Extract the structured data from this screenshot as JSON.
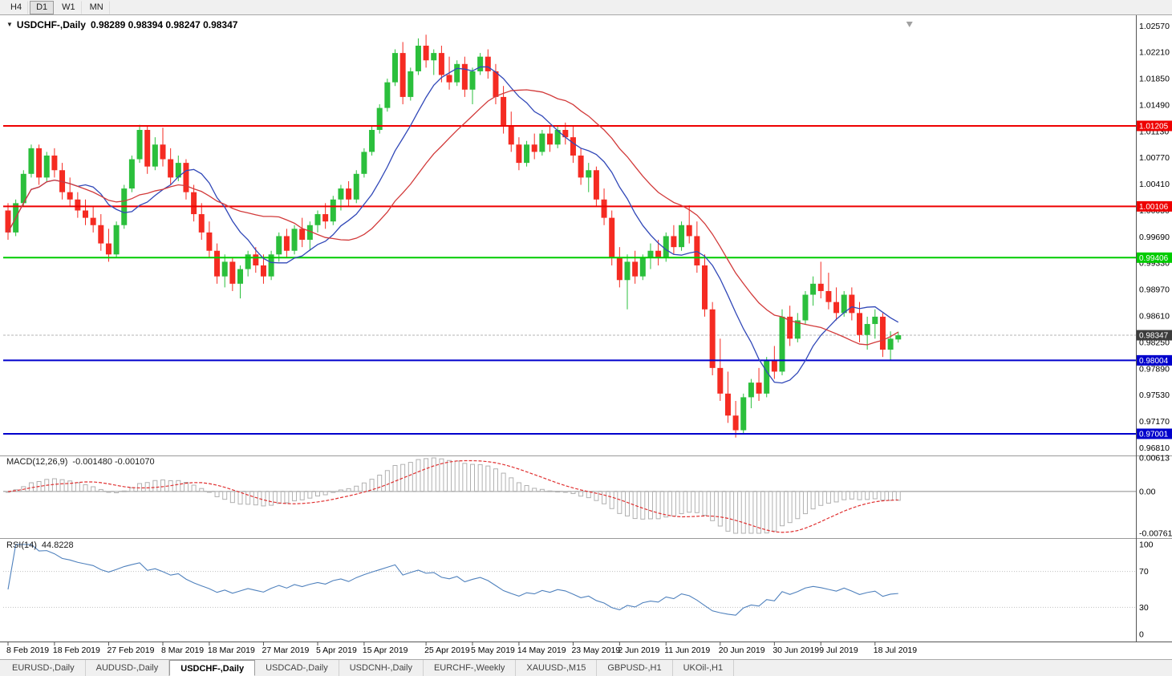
{
  "toolbar": {
    "timeframes": [
      "H4",
      "D1",
      "W1",
      "MN"
    ],
    "active_timeframe": "D1"
  },
  "chart_title": {
    "expander": "▼",
    "symbol": "USDCHF-,Daily",
    "ohlc_text": "0.98289 0.98394 0.98247 0.98347"
  },
  "tabs": [
    "EURUSD-,Daily",
    "AUDUSD-,Daily",
    "USDCHF-,Daily",
    "USDCAD-,Daily",
    "USDCNH-,Daily",
    "EURCHF-,Weekly",
    "XAUUSD-,M15",
    "GBPUSD-,H1",
    "UKOil-,H1"
  ],
  "active_tab": "USDCHF-,Daily",
  "chart_data": {
    "type": "candlestick",
    "symbol": "USDCHF",
    "timeframe": "Daily",
    "ohlc_current": {
      "open": 0.98289,
      "high": 0.98394,
      "low": 0.98247,
      "close": 0.98347
    },
    "price_axis": {
      "labels": [
        "1.02570",
        "1.02210",
        "1.01850",
        "1.01490",
        "1.01130",
        "1.00770",
        "1.00410",
        "1.00050",
        "0.99690",
        "0.99330",
        "0.98970",
        "0.98610",
        "0.98250",
        "0.97890",
        "0.97530",
        "0.97170",
        "0.96810"
      ]
    },
    "x_axis": {
      "tick_indices": [
        0,
        6,
        13,
        20,
        26,
        33,
        40,
        46,
        54,
        60,
        66,
        73,
        79,
        85,
        92,
        99,
        105,
        112
      ],
      "tick_labels": [
        "8 Feb 2019",
        "18 Feb 2019",
        "27 Feb 2019",
        "8 Mar 2019",
        "18 Mar 2019",
        "27 Mar 2019",
        "5 Apr 2019",
        "15 Apr 2019",
        "25 Apr 2019",
        "5 May 2019",
        "14 May 2019",
        "23 May 2019",
        "2 Jun 2019",
        "11 Jun 2019",
        "20 Jun 2019",
        "30 Jun 2019",
        "9 Jul 2019",
        "18 Jul 2019"
      ]
    },
    "levels": [
      {
        "value": 1.01205,
        "label": "1.01205",
        "color": "#ee0000"
      },
      {
        "value": 1.00106,
        "label": "1.00106",
        "color": "#ee0000"
      },
      {
        "value": 0.99406,
        "label": "0.99406",
        "color": "#00cc00"
      },
      {
        "value": 0.98004,
        "label": "0.98004",
        "color": "#0000cc"
      },
      {
        "value": 0.97001,
        "label": "0.97001",
        "color": "#0000cc"
      }
    ],
    "current_price": {
      "value": 0.98347,
      "label": "0.98347"
    },
    "ma": {
      "fast_period": 10,
      "slow_period": 21
    },
    "macd": {
      "label": "MACD(12,26,9)",
      "values_text": "-0.001480 -0.001070",
      "fast": 12,
      "slow": 26,
      "signal": 9,
      "axis_labels": [
        "0.00613",
        "0.00",
        "-0.00761"
      ],
      "axis_values": [
        0.00613,
        0,
        -0.00761
      ]
    },
    "rsi": {
      "label": "RSI(14)",
      "value_text": "44.8228",
      "period": 14,
      "axis_labels": [
        "100",
        "70",
        "30",
        "0"
      ],
      "levels": [
        70,
        30
      ]
    },
    "colors": {
      "up": "#2bbf3c",
      "down": "#f52b22",
      "ma_fast": "#3148b8",
      "ma_slow": "#d23a3a",
      "macd_hist": "#b0b0b0",
      "macd_signal": "#e03030",
      "rsi": "#4f81bd",
      "current_badge": "#3c3c3c"
    },
    "candles": [
      [
        1.0005,
        1.0015,
        0.9965,
        0.9975
      ],
      [
        0.9975,
        1.002,
        0.997,
        1.0015
      ],
      [
        1.0015,
        1.006,
        1.001,
        1.0055
      ],
      [
        1.0055,
        1.0095,
        1.005,
        1.009
      ],
      [
        1.009,
        1.0095,
        1.004,
        1.005
      ],
      [
        1.005,
        1.0085,
        1.0045,
        1.008
      ],
      [
        1.008,
        1.009,
        1.005,
        1.006
      ],
      [
        1.006,
        1.007,
        1.002,
        1.003
      ],
      [
        1.003,
        1.005,
        1.001,
        1.002
      ],
      [
        1.002,
        1.003,
        0.9995,
        1.0005
      ],
      [
        1.0005,
        1.002,
        0.9985,
        0.9995
      ],
      [
        0.9995,
        1.001,
        0.9975,
        0.9985
      ],
      [
        0.9985,
        1.0,
        0.995,
        0.996
      ],
      [
        0.996,
        0.998,
        0.9935,
        0.9945
      ],
      [
        0.9945,
        0.999,
        0.994,
        0.9985
      ],
      [
        0.9985,
        1.004,
        0.998,
        1.0035
      ],
      [
        1.0035,
        1.008,
        1.003,
        1.0075
      ],
      [
        1.0075,
        1.0122,
        1.007,
        1.0115
      ],
      [
        1.0115,
        1.012,
        1.0055,
        1.0065
      ],
      [
        1.0065,
        1.0105,
        1.006,
        1.0095
      ],
      [
        1.0095,
        1.0118,
        1.0065,
        1.0075
      ],
      [
        1.0075,
        1.009,
        1.004,
        1.005
      ],
      [
        1.005,
        1.008,
        1.0045,
        1.007
      ],
      [
        1.007,
        1.0075,
        1.002,
        1.003
      ],
      [
        1.003,
        1.004,
        0.999,
        1.0
      ],
      [
        1.0,
        1.0015,
        0.9965,
        0.9975
      ],
      [
        0.9975,
        0.999,
        0.994,
        0.995
      ],
      [
        0.995,
        0.996,
        0.9905,
        0.9915
      ],
      [
        0.9915,
        0.9945,
        0.99,
        0.9935
      ],
      [
        0.9935,
        0.994,
        0.9895,
        0.9905
      ],
      [
        0.9905,
        0.993,
        0.9885,
        0.9925
      ],
      [
        0.9925,
        0.995,
        0.9915,
        0.9945
      ],
      [
        0.9945,
        0.9955,
        0.992,
        0.993
      ],
      [
        0.993,
        0.9945,
        0.9905,
        0.9915
      ],
      [
        0.9915,
        0.995,
        0.991,
        0.9945
      ],
      [
        0.9945,
        0.9975,
        0.9935,
        0.997
      ],
      [
        0.997,
        0.998,
        0.994,
        0.995
      ],
      [
        0.995,
        0.9985,
        0.9945,
        0.998
      ],
      [
        0.998,
        0.9995,
        0.9955,
        0.9965
      ],
      [
        0.9965,
        0.999,
        0.995,
        0.9985
      ],
      [
        0.9985,
        1.0005,
        0.9975,
        1.0
      ],
      [
        1.0,
        1.0015,
        0.998,
        0.999
      ],
      [
        0.999,
        1.0025,
        0.9985,
        1.002
      ],
      [
        1.002,
        1.004,
        1.0005,
        1.0035
      ],
      [
        1.0035,
        1.0045,
        1.001,
        1.002
      ],
      [
        1.002,
        1.006,
        1.0015,
        1.0055
      ],
      [
        1.0055,
        1.009,
        1.005,
        1.0085
      ],
      [
        1.0085,
        1.012,
        1.008,
        1.0115
      ],
      [
        1.0115,
        1.015,
        1.011,
        1.0145
      ],
      [
        1.0145,
        1.0185,
        1.014,
        1.018
      ],
      [
        1.018,
        1.0225,
        1.0175,
        1.022
      ],
      [
        1.022,
        1.0235,
        1.015,
        1.016
      ],
      [
        1.016,
        1.02,
        1.0155,
        1.0195
      ],
      [
        1.0195,
        1.024,
        1.019,
        1.023
      ],
      [
        1.023,
        1.0245,
        1.02,
        1.021
      ],
      [
        1.021,
        1.0225,
        1.019,
        1.022
      ],
      [
        1.022,
        1.023,
        1.018,
        1.019
      ],
      [
        1.019,
        1.0215,
        1.017,
        1.018
      ],
      [
        1.018,
        1.021,
        1.0175,
        1.0205
      ],
      [
        1.0205,
        1.0215,
        1.016,
        1.017
      ],
      [
        1.017,
        1.02,
        1.015,
        1.0195
      ],
      [
        1.0195,
        1.022,
        1.019,
        1.0215
      ],
      [
        1.0215,
        1.0225,
        1.0185,
        1.0195
      ],
      [
        1.0195,
        1.0205,
        1.015,
        1.016
      ],
      [
        1.016,
        1.0175,
        1.011,
        1.012
      ],
      [
        1.012,
        1.014,
        1.0085,
        1.0095
      ],
      [
        1.0095,
        1.0105,
        1.006,
        1.007
      ],
      [
        1.007,
        1.01,
        1.0065,
        1.0095
      ],
      [
        1.0095,
        1.011,
        1.0075,
        1.0085
      ],
      [
        1.0085,
        1.0115,
        1.008,
        1.011
      ],
      [
        1.011,
        1.012,
        1.0085,
        1.0095
      ],
      [
        1.0095,
        1.012,
        1.009,
        1.0115
      ],
      [
        1.0115,
        1.0125,
        1.0095,
        1.0105
      ],
      [
        1.0105,
        1.012,
        1.007,
        1.008
      ],
      [
        1.008,
        1.009,
        1.004,
        1.005
      ],
      [
        1.005,
        1.007,
        1.003,
        1.006
      ],
      [
        1.006,
        1.0065,
        1.001,
        1.002
      ],
      [
        1.002,
        1.0035,
        0.9985,
        0.9995
      ],
      [
        0.9995,
        1.0005,
        0.993,
        0.994
      ],
      [
        0.994,
        0.9955,
        0.99,
        0.991
      ],
      [
        0.991,
        0.9945,
        0.987,
        0.9935
      ],
      [
        0.9935,
        0.995,
        0.9905,
        0.9915
      ],
      [
        0.9915,
        0.9945,
        0.991,
        0.994
      ],
      [
        0.994,
        0.996,
        0.9925,
        0.995
      ],
      [
        0.995,
        0.9965,
        0.993,
        0.994
      ],
      [
        0.994,
        0.9975,
        0.9935,
        0.997
      ],
      [
        0.997,
        0.9985,
        0.9945,
        0.9955
      ],
      [
        0.9955,
        0.999,
        0.995,
        0.9985
      ],
      [
        0.9985,
        1.0012,
        0.996,
        0.997
      ],
      [
        0.997,
        0.999,
        0.992,
        0.993
      ],
      [
        0.993,
        0.9945,
        0.986,
        0.987
      ],
      [
        0.987,
        0.988,
        0.978,
        0.979
      ],
      [
        0.979,
        0.983,
        0.9745,
        0.9755
      ],
      [
        0.9755,
        0.9785,
        0.9715,
        0.9725
      ],
      [
        0.9725,
        0.9745,
        0.9695,
        0.9705
      ],
      [
        0.9705,
        0.9755,
        0.97,
        0.975
      ],
      [
        0.975,
        0.9775,
        0.9735,
        0.977
      ],
      [
        0.977,
        0.979,
        0.9745,
        0.9755
      ],
      [
        0.9755,
        0.9805,
        0.975,
        0.98
      ],
      [
        0.98,
        0.982,
        0.9775,
        0.9785
      ],
      [
        0.9785,
        0.987,
        0.978,
        0.986
      ],
      [
        0.986,
        0.9875,
        0.982,
        0.983
      ],
      [
        0.983,
        0.9865,
        0.9825,
        0.9855
      ],
      [
        0.9855,
        0.9895,
        0.985,
        0.989
      ],
      [
        0.989,
        0.9915,
        0.9875,
        0.9905
      ],
      [
        0.9905,
        0.9935,
        0.9885,
        0.9895
      ],
      [
        0.9895,
        0.992,
        0.987,
        0.988
      ],
      [
        0.988,
        0.99,
        0.9855,
        0.9865
      ],
      [
        0.9865,
        0.9895,
        0.986,
        0.989
      ],
      [
        0.989,
        0.99,
        0.9855,
        0.9865
      ],
      [
        0.9865,
        0.988,
        0.9825,
        0.9835
      ],
      [
        0.9835,
        0.986,
        0.9815,
        0.985
      ],
      [
        0.985,
        0.987,
        0.983,
        0.986
      ],
      [
        0.986,
        0.9865,
        0.9805,
        0.9815
      ],
      [
        0.9815,
        0.984,
        0.98,
        0.983
      ],
      [
        0.98289,
        0.98394,
        0.98247,
        0.98347
      ]
    ]
  }
}
